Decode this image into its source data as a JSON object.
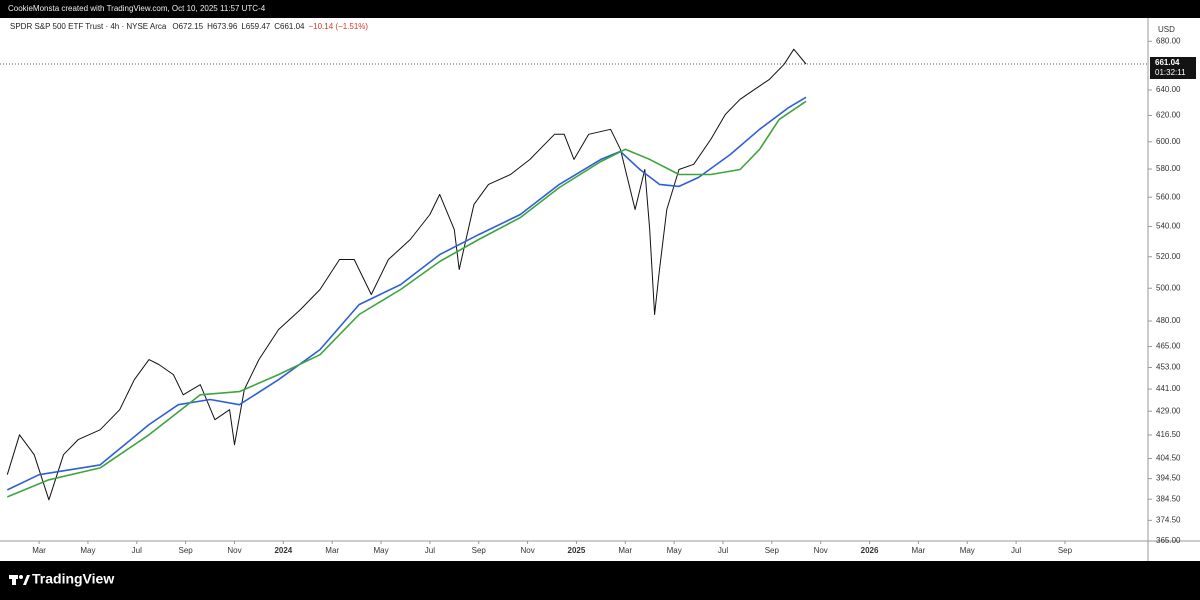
{
  "header": {
    "credit": "CookieMonsta created with TradingView.com, Oct 10, 2025 11:57 UTC-4"
  },
  "legend": {
    "symbol": "SPDR S&P 500 ETF Trust · 4h · NYSE Arca",
    "open": "O672.15",
    "high": "H673.96",
    "low": "L659.47",
    "close": "C661.04",
    "change": "−10.14 (−1.51%)"
  },
  "footer": {
    "brand": "TradingView"
  },
  "chart_data": {
    "type": "line",
    "log_scale": true,
    "currency": "USD",
    "last_price": 661.04,
    "countdown": "01:32:11",
    "xlim": [
      -1.6,
      45.4
    ],
    "xticks": [
      {
        "value": 0,
        "label": "Mar"
      },
      {
        "value": 2,
        "label": "May"
      },
      {
        "value": 4,
        "label": "Jul"
      },
      {
        "value": 6,
        "label": "Sep"
      },
      {
        "value": 8,
        "label": "Nov"
      },
      {
        "value": 10,
        "label": "2024"
      },
      {
        "value": 12,
        "label": "Mar"
      },
      {
        "value": 14,
        "label": "May"
      },
      {
        "value": 16,
        "label": "Jul"
      },
      {
        "value": 18,
        "label": "Sep"
      },
      {
        "value": 20,
        "label": "Nov"
      },
      {
        "value": 22,
        "label": "2025"
      },
      {
        "value": 24,
        "label": "Mar"
      },
      {
        "value": 26,
        "label": "May"
      },
      {
        "value": 28,
        "label": "Jul"
      },
      {
        "value": 30,
        "label": "Sep"
      },
      {
        "value": 32,
        "label": "Nov"
      },
      {
        "value": 34,
        "label": "2026"
      },
      {
        "value": 36,
        "label": "Mar"
      },
      {
        "value": 38,
        "label": "May"
      },
      {
        "value": 40,
        "label": "Jul"
      },
      {
        "value": 42,
        "label": "Sep"
      }
    ],
    "ylim": [
      365,
      700
    ],
    "yticks": [
      {
        "value": 680,
        "label": "680.00"
      },
      {
        "value": 640,
        "label": "640.00"
      },
      {
        "value": 620,
        "label": "620.00"
      },
      {
        "value": 600,
        "label": "600.00"
      },
      {
        "value": 580,
        "label": "580.00"
      },
      {
        "value": 560,
        "label": "560.00"
      },
      {
        "value": 540,
        "label": "540.00"
      },
      {
        "value": 520,
        "label": "520.00"
      },
      {
        "value": 500,
        "label": "500.00"
      },
      {
        "value": 480,
        "label": "480.00"
      },
      {
        "value": 465,
        "label": "465.00"
      },
      {
        "value": 453,
        "label": "453.00"
      },
      {
        "value": 441,
        "label": "441.00"
      },
      {
        "value": 429,
        "label": "429.00"
      },
      {
        "value": 416.5,
        "label": "416.50"
      },
      {
        "value": 404.5,
        "label": "404.50"
      },
      {
        "value": 394.5,
        "label": "394.50"
      },
      {
        "value": 384.5,
        "label": "384.50"
      },
      {
        "value": 374.5,
        "label": "374.50"
      },
      {
        "value": 365,
        "label": "365.00"
      }
    ],
    "series": [
      {
        "color": "#111111",
        "x": [
          -1.3,
          -0.8,
          -0.2,
          0.4,
          1.0,
          1.6,
          2.5,
          3.3,
          3.9,
          4.5,
          4.9,
          5.5,
          5.9,
          6.6,
          7.2,
          7.8,
          8.0,
          8.4,
          9.0,
          9.8,
          10.7,
          11.5,
          12.3,
          12.9,
          13.6,
          14.3,
          15.2,
          16.0,
          16.4,
          17.0,
          17.2,
          17.8,
          18.4,
          19.3,
          20.1,
          20.5,
          21.1,
          21.5,
          21.9,
          22.5,
          23.4,
          23.8,
          24.4,
          24.8,
          25.0,
          25.2,
          25.4,
          25.7,
          26.2,
          26.8,
          27.5,
          28.1,
          28.7,
          29.3,
          29.9,
          30.5,
          30.9,
          31.4
        ],
        "values": [
          396.4,
          416.6,
          406.4,
          384.2,
          406.4,
          414.1,
          419.2,
          429.8,
          446.2,
          457.5,
          454.7,
          449.0,
          437.9,
          443.4,
          424.5,
          429.8,
          411.5,
          440.7,
          457.5,
          474.9,
          486.9,
          499.2,
          518.2,
          518.2,
          496.1,
          518.2,
          531.3,
          548.1,
          562.0,
          537.9,
          511.8,
          554.9,
          569.0,
          576.1,
          587.0,
          594.4,
          605.6,
          605.6,
          587.0,
          605.6,
          609.4,
          594.4,
          551.5,
          579.7,
          537.9,
          483.9,
          511.8,
          551.5,
          579.7,
          583.4,
          601.8,
          620.8,
          632.6,
          640.5,
          648.5,
          660.8,
          673.3,
          661.04
        ]
      },
      {
        "color": "#2f5fd6",
        "x": [
          -1.3,
          0,
          2.5,
          4.5,
          5.7,
          7.0,
          8.2,
          9.8,
          11.5,
          13.1,
          14.8,
          16.4,
          18.0,
          19.7,
          21.3,
          23.0,
          23.8,
          24.6,
          25.4,
          26.2,
          27.0,
          28.3,
          29.5,
          30.7,
          31.4
        ],
        "values": [
          389.0,
          396.4,
          401.3,
          421.9,
          432.5,
          435.3,
          432.5,
          446.2,
          463.2,
          489.9,
          502.3,
          521.4,
          534.5,
          548.1,
          569.0,
          587.0,
          592.9,
          579.7,
          569.0,
          567.6,
          574.0,
          590.6,
          609.4,
          626.3,
          634.2
        ]
      },
      {
        "color": "#3da53d",
        "x": [
          -1.3,
          0.4,
          2.5,
          4.5,
          6.6,
          8.2,
          9.8,
          11.5,
          13.1,
          14.8,
          16.4,
          18.0,
          19.7,
          21.3,
          23.0,
          24.0,
          25.0,
          26.2,
          27.5,
          28.7,
          29.5,
          30.3,
          31.4
        ],
        "values": [
          385.6,
          393.9,
          399.8,
          416.6,
          437.9,
          439.6,
          449.0,
          460.3,
          483.9,
          499.2,
          516.9,
          531.3,
          546.0,
          566.8,
          585.5,
          594.4,
          587.0,
          576.1,
          576.1,
          579.7,
          594.4,
          617.0,
          631.0
        ]
      }
    ]
  }
}
